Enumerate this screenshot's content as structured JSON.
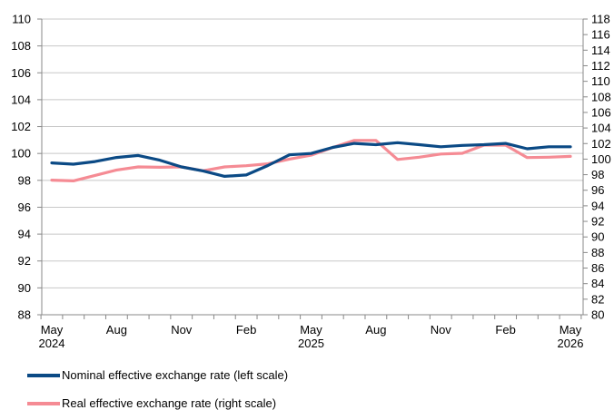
{
  "chart_data": {
    "type": "line",
    "x": [
      "2024-05",
      "2024-06",
      "2024-07",
      "2024-08",
      "2024-09",
      "2024-10",
      "2024-11",
      "2024-12",
      "2025-01",
      "2025-02",
      "2025-03",
      "2025-04",
      "2025-05",
      "2025-06",
      "2025-07",
      "2025-08",
      "2025-09",
      "2025-10",
      "2025-11",
      "2025-12",
      "2026-01",
      "2026-02",
      "2026-03",
      "2026-04",
      "2026-05"
    ],
    "x_tick_labels": [
      {
        "x": "2024-05",
        "line1": "May",
        "line2": "2024"
      },
      {
        "x": "2024-08",
        "line1": "Aug",
        "line2": ""
      },
      {
        "x": "2024-11",
        "line1": "Nov",
        "line2": ""
      },
      {
        "x": "2025-02",
        "line1": "Feb",
        "line2": ""
      },
      {
        "x": "2025-05",
        "line1": "May",
        "line2": "2025"
      },
      {
        "x": "2025-08",
        "line1": "Aug",
        "line2": ""
      },
      {
        "x": "2025-11",
        "line1": "Nov",
        "line2": ""
      },
      {
        "x": "2026-02",
        "line1": "Feb",
        "line2": ""
      },
      {
        "x": "2026-05",
        "line1": "May",
        "line2": "2026"
      }
    ],
    "y_left": {
      "min": 88,
      "max": 110,
      "step": 2
    },
    "y_right": {
      "min": 80,
      "max": 118,
      "step": 2
    },
    "grid": true,
    "legend_position": "bottom",
    "series": [
      {
        "name": "Nominal effective exchange rate (left scale)",
        "axis": "left",
        "color": "#0b4a85",
        "values": [
          99.3,
          99.2,
          99.4,
          99.7,
          99.85,
          99.5,
          99.0,
          98.7,
          98.3,
          98.4,
          99.1,
          99.9,
          100.0,
          100.45,
          100.75,
          100.65,
          100.8,
          100.65,
          100.5,
          100.6,
          100.65,
          100.75,
          100.35,
          100.5,
          100.5
        ]
      },
      {
        "name": "Real effective exchange rate (right scale)",
        "axis": "right",
        "color": "#f58b94",
        "values": [
          97.3,
          97.2,
          97.9,
          98.6,
          99.0,
          98.95,
          99.0,
          98.5,
          99.0,
          99.15,
          99.4,
          100.0,
          100.5,
          101.5,
          102.4,
          102.4,
          99.95,
          100.25,
          100.65,
          100.75,
          101.8,
          101.8,
          100.2,
          100.25,
          100.35
        ]
      }
    ]
  }
}
